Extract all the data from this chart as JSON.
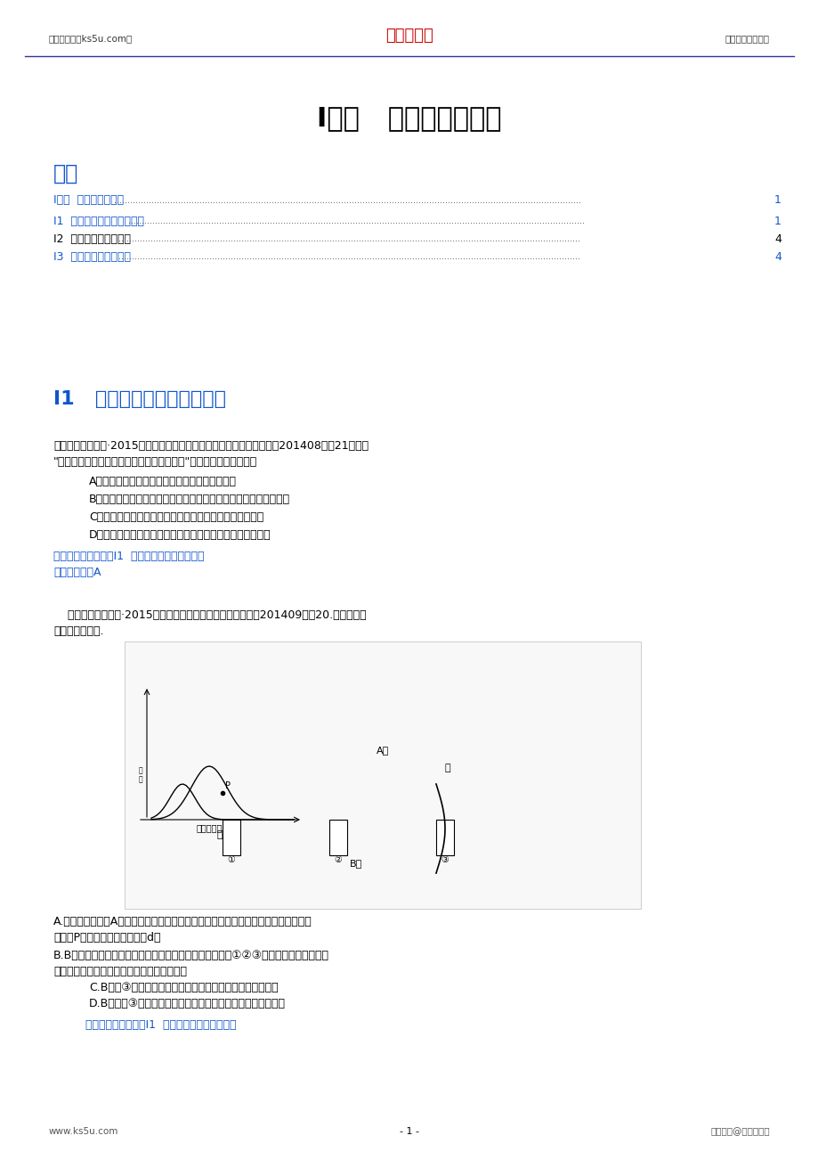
{
  "bg_color": "#ffffff",
  "header_left": "高考资源网（ks5u.com）",
  "header_center": "高考资源网",
  "header_right": "您身边的高考专家",
  "header_center_color": "#cc0000",
  "header_text_color": "#333333",
  "footer_left": "www.ks5u.com",
  "footer_center": "- 1 -",
  "footer_right": "版权所有@高考资源网",
  "footer_text_color": "#555555",
  "main_title": "I单元   植物的激素调节",
  "main_title_color": "#000000",
  "main_title_fontsize": 22,
  "toc_title": "目录",
  "toc_title_color": "#1155CC",
  "toc_title_fontsize": 18,
  "toc_items": [
    {
      "text": "I单元  植物的激素调节",
      "page": "1",
      "color": "#1155CC"
    },
    {
      "text": "I1  生长素的发现及生理作用",
      "page": "1",
      "color": "#1155CC"
    },
    {
      "text": "I2  其他植物激素及应用",
      "page": "4",
      "color": "#000000"
    },
    {
      "text": "I3  植物的激素调节综合",
      "page": "4",
      "color": "#1155CC"
    }
  ],
  "section_title": "I1   生长素的发现及生理作用",
  "section_title_color": "#1155CC",
  "section_title_fontsize": 16,
  "q1_header": "【生物卷（解析）·2015届安徽省六校教育研究会高三第一次联考试卷（201408）】21．有关",
  "q1_header2": "\"探索生长素类似物促进插条生根的最适浓度\"实验的叙述，错误的是",
  "q1_options": [
    "A．在预实验中不需要设置用蒸馏水处理的对照组",
    "B．在正式实验中，不同浓度生长素类似物处理组之间形成相互对照",
    "C．处理时应该用生长素类似物溶液浸泡或沾蘸插条的基部",
    "D．用于扦插的枝条应带有一定数量的幼芽以利于更好的生根"
  ],
  "q1_answer_line": "【答案】【知识点】I1  生长素的发现及生理作用",
  "q1_answer_detail": "【答案解析】A",
  "q2_header": "    【生物卷（解析）·2015届湖南省师大附中高三第一次月考（201409）】20.下列有关说",
  "q2_header2": "法正确的是（）.",
  "answer_color": "#1155CC",
  "text_color": "#000000",
  "image_sub_options": [
    "A.将一植物横放成A图乙，测量其根和茎生长素浓度与其生长状况的关系如图甲，则甲",
    "图中的P点最可能对应乙图中的d点",
    "B.B图左侧为对燕麦胚芽鞘所做的处理。一段时间后，右侧①②③在图示位置时，其生长",
    "情况依次是：向左弯曲、直立生长、向右弯曲",
    "C.B图中③说明单侧光使胚芽鞘尖端产生的生长素分布不均匀",
    "D.B图中的③如果不向右弯曲则说明感受光刺激的部位不在尖端"
  ],
  "q2_answer_line": "    【答案】【知识点】I1  生长素的发现及生理作用"
}
